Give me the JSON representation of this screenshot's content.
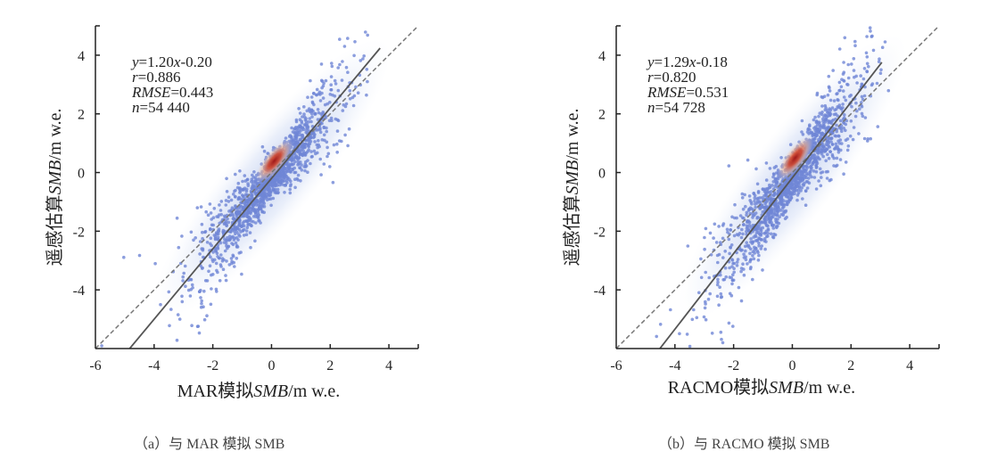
{
  "figure": {
    "colors": {
      "points": "#6f86d6",
      "density_low": "#cdd9f2",
      "density_high": "#c0392b",
      "fit_line": "#555555",
      "one_to_one_line": "#777777",
      "axis": "#222222"
    }
  },
  "chart_data": [
    {
      "type": "scatter",
      "title": "",
      "caption": "（a）与 MAR 模拟 SMB",
      "xlabel_parts": [
        "MAR模拟",
        "SMB",
        "/m w.e."
      ],
      "ylabel_parts": [
        "遥感估算",
        "SMB",
        "/m w.e."
      ],
      "xlim": [
        -6,
        5
      ],
      "ylim": [
        -6,
        5
      ],
      "xticks": [
        -6,
        -4,
        -2,
        0,
        2,
        4
      ],
      "yticks": [
        -4,
        -2,
        0,
        2,
        4
      ],
      "xtick_labels": [
        "-6",
        "-4",
        "-2",
        "0",
        "2",
        "4"
      ],
      "ytick_labels": [
        "-4",
        "-2",
        "0",
        "2",
        "4"
      ],
      "fit": {
        "slope": 1.2,
        "intercept": -0.2,
        "style": "solid",
        "x_range": [
          -5.2,
          3.7
        ]
      },
      "one_to_one": {
        "style": "dashed",
        "x_range": [
          -6,
          5
        ]
      },
      "annotations": [
        {
          "var": "y",
          "text": "=1.20",
          "var2": "x",
          "text2": "-0.20"
        },
        {
          "var": "r",
          "text": "=0.886"
        },
        {
          "var": "RMSE",
          "text": "=0.443"
        },
        {
          "var": "n",
          "text": "=54 440"
        }
      ],
      "stats": {
        "r": 0.886,
        "RMSE": 0.443,
        "n": 54440
      },
      "density_peak": [
        0.1,
        0.4
      ],
      "spread": {
        "main_sd_x": 1.1,
        "main_sd_perp": 0.35
      }
    },
    {
      "type": "scatter",
      "title": "",
      "caption": "（b）与 RACMO 模拟 SMB",
      "xlabel_parts": [
        "RACMO模拟",
        "SMB",
        "/m w.e."
      ],
      "ylabel_parts": [
        "遥感估算",
        "SMB",
        "/m w.e."
      ],
      "xlim": [
        -6,
        5
      ],
      "ylim": [
        -6,
        5
      ],
      "xticks": [
        -6,
        -4,
        -2,
        0,
        2,
        4
      ],
      "yticks": [
        -4,
        -2,
        0,
        2,
        4
      ],
      "xtick_labels": [
        "-6",
        "-4",
        "-2",
        "0",
        "2",
        "4"
      ],
      "ytick_labels": [
        "-4",
        "-2",
        "0",
        "2",
        "4"
      ],
      "fit": {
        "slope": 1.29,
        "intercept": -0.18,
        "style": "solid",
        "x_range": [
          -4.8,
          3.05
        ]
      },
      "one_to_one": {
        "style": "dashed",
        "x_range": [
          -6,
          5
        ]
      },
      "annotations": [
        {
          "var": "y",
          "text": "=1.29",
          "var2": "x",
          "text2": "-0.18"
        },
        {
          "var": "r",
          "text": "=0.820"
        },
        {
          "var": "RMSE",
          "text": "=0.531"
        },
        {
          "var": "n",
          "text": "=54 728"
        }
      ],
      "stats": {
        "r": 0.82,
        "RMSE": 0.531,
        "n": 54728
      },
      "density_peak": [
        0.1,
        0.5
      ],
      "spread": {
        "main_sd_x": 1.1,
        "main_sd_perp": 0.4
      }
    }
  ]
}
